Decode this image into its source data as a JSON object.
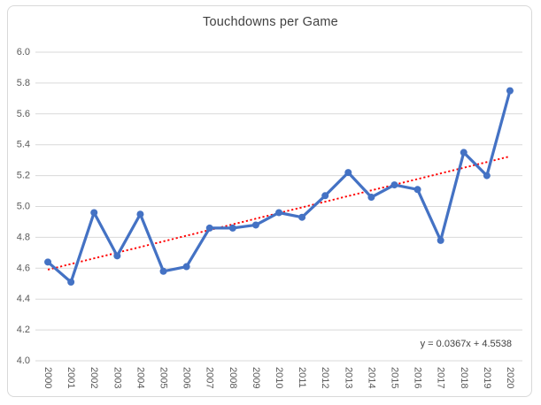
{
  "chart_data": {
    "type": "line",
    "title": "Touchdowns per Game",
    "categories": [
      "2000",
      "2001",
      "2002",
      "2003",
      "2004",
      "2005",
      "2006",
      "2007",
      "2008",
      "2009",
      "2010",
      "2011",
      "2012",
      "2013",
      "2014",
      "2015",
      "2016",
      "2017",
      "2018",
      "2019",
      "2020"
    ],
    "series": [
      {
        "name": "Touchdowns per Game",
        "values": [
          4.64,
          4.51,
          4.96,
          4.68,
          4.95,
          4.58,
          4.61,
          4.86,
          4.86,
          4.88,
          4.96,
          4.93,
          5.07,
          5.22,
          5.06,
          5.14,
          5.11,
          4.78,
          5.35,
          5.2,
          5.75
        ],
        "color": "#4472C4",
        "marker": "circle"
      }
    ],
    "xlabel": "",
    "ylabel": "",
    "ylim": [
      4.0,
      6.0
    ],
    "y_ticks": [
      "6.0",
      "5.8",
      "5.6",
      "5.4",
      "5.2",
      "5.0",
      "4.8",
      "4.6",
      "4.4",
      "4.2",
      "4.0"
    ],
    "x_tick_rotation_deg": 90,
    "grid": true,
    "legend": "none",
    "trendline": {
      "type": "linear",
      "slope": 0.0367,
      "intercept": 4.5538,
      "equation_label": "y = 0.0367x + 4.5538",
      "style": "dotted",
      "color": "#FF0000"
    },
    "colors": {
      "series_line": "#4472C4",
      "trendline": "#FF0000",
      "gridline": "#D9D9D9",
      "axis_text": "#595959",
      "title_text": "#404040",
      "equation_text": "#404040",
      "chart_border": "#D9D9D9",
      "background": "#FFFFFF"
    }
  }
}
